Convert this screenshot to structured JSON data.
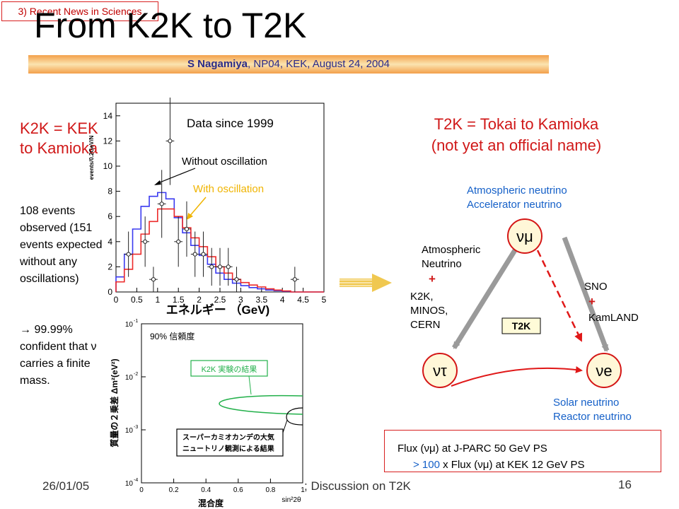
{
  "slide": {
    "tag": "3) Recent News in Sciences",
    "title": "From K2K to T2K",
    "byline_name": "S Nagamiya",
    "byline_rest": ", NP04, KEK, August 24, 2004"
  },
  "left": {
    "k2k_definition": "K2K = KEK to Kamioka",
    "events_text": "108 events observed (151 events expected without any oscillations)",
    "arrow_symbol": "→",
    "confident_text": " 99.99% confident that ν carries a finite mass."
  },
  "histogram": {
    "ylabel": "events/0.2GeV/N",
    "yticks": [
      "0",
      "2",
      "4",
      "6",
      "8",
      "10",
      "12",
      "14"
    ],
    "xticks": [
      "0",
      "0.5",
      "1",
      "1.5",
      "2",
      "2.5",
      "3",
      "3.5",
      "4",
      "4.5",
      "5"
    ],
    "xlabel": "エネルギー （GeV)",
    "inset_label": "Data since 1999",
    "label_without": "Without oscillation",
    "label_with": "With oscillation"
  },
  "contour": {
    "ytick_labels": [
      "10",
      "10",
      "10",
      "10"
    ],
    "ytick_exponents": [
      "-1",
      "-2",
      "-3",
      "-4"
    ],
    "xticks": [
      "0",
      "0.2",
      "0.4",
      "0.6",
      "0.8",
      "1"
    ],
    "ylabel": "質量の２乗差 Δm²(eV²)",
    "xlabel_jp": "混合度",
    "xlabel_math": "sin²2θ",
    "confidence_label": "90% 信頼度",
    "k2k_result_label": "K2K 実験の結果",
    "sk_result_line1": "スーパーカミオカンデの大気",
    "sk_result_line2": "ニュートリノ観測による結果"
  },
  "right": {
    "t2k_line1": "T2K = Tokai to Kamioka",
    "t2k_line2": "(not yet an official name)"
  },
  "triangle": {
    "top_label_1": "Atmospheric neutrino",
    "top_label_2": "Accelerator neutrino",
    "nu_mu": "νμ",
    "nu_tau": "ντ",
    "nu_e": "νe",
    "left_1": "Atmospheric",
    "left_2": "Neutrino",
    "left_plus": "+",
    "left_3": "K2K,",
    "left_4": "MINOS,",
    "left_5": "CERN",
    "right_1": "SNO",
    "right_plus": "+",
    "right_2": "KamLAND",
    "t2k_badge": "T2K",
    "bottom_1": "Solar neutrino",
    "bottom_2": "Reactor neutrino"
  },
  "flux": {
    "line1": "Flux (νμ) at J-PARC 50 GeV PS",
    "line2_highlight": "> 100",
    "line2_rest": " x Flux (νμ) at KEK 12 GeV PS"
  },
  "footer": {
    "date": "26/01/05",
    "talk": "; Discussion on T2K",
    "page": "16"
  },
  "colors": {
    "red_text": "#d01818",
    "blue_text": "#1560c8",
    "hist_blue": "#3a3af0",
    "hist_red": "#ec2a2a",
    "with_osc_label": "#f0b400",
    "contour_green": "#22b04a",
    "node_fill": "#fff7d8",
    "node_border": "#d41616"
  },
  "chart_data": {
    "type": "bar",
    "title": "Data since 1999",
    "xlabel": "エネルギー （GeV)",
    "ylabel": "events/0.2GeV/N",
    "xlim": [
      0,
      5
    ],
    "ylim": [
      0,
      15
    ],
    "bin_width": 0.2,
    "series": [
      {
        "name": "Without oscillation",
        "style": "histogram",
        "color": "#3a3af0",
        "values": [
          1.2,
          3.0,
          5.0,
          6.8,
          7.6,
          7.9,
          7.4,
          5.9,
          4.7,
          3.7,
          2.9,
          2.2,
          1.5,
          1.0,
          0.7,
          0.5,
          0.35,
          0.25,
          0.15,
          0.1,
          0.05,
          0,
          0,
          0,
          0
        ]
      },
      {
        "name": "With oscillation",
        "style": "histogram",
        "color": "#ec2a2a",
        "values": [
          0.8,
          1.8,
          3.0,
          4.6,
          5.6,
          6.6,
          6.6,
          6.0,
          5.1,
          4.3,
          3.6,
          2.8,
          2.0,
          1.5,
          1.0,
          0.75,
          0.55,
          0.4,
          0.25,
          0.15,
          0.08,
          0,
          0,
          0,
          0
        ]
      },
      {
        "name": "Data",
        "style": "points",
        "color": "#222222",
        "points": [
          {
            "x": 0.3,
            "y": 3.0,
            "err": 1.8
          },
          {
            "x": 0.7,
            "y": 4.0,
            "err": 2.0
          },
          {
            "x": 0.9,
            "y": 1.0,
            "err": 1.0
          },
          {
            "x": 1.1,
            "y": 7.0,
            "err": 2.7
          },
          {
            "x": 1.3,
            "y": 12.0,
            "err": 3.5
          },
          {
            "x": 1.5,
            "y": 4.0,
            "err": 2.0
          },
          {
            "x": 1.7,
            "y": 5.0,
            "err": 2.2
          },
          {
            "x": 1.9,
            "y": 3.0,
            "err": 1.8
          },
          {
            "x": 2.1,
            "y": 3.0,
            "err": 1.8
          },
          {
            "x": 2.3,
            "y": 2.0,
            "err": 1.5
          },
          {
            "x": 2.5,
            "y": 2.0,
            "err": 1.5
          },
          {
            "x": 2.7,
            "y": 2.0,
            "err": 1.5
          },
          {
            "x": 2.9,
            "y": 1.0,
            "err": 1.0
          },
          {
            "x": 4.3,
            "y": 1.0,
            "err": 1.0
          }
        ]
      }
    ]
  }
}
